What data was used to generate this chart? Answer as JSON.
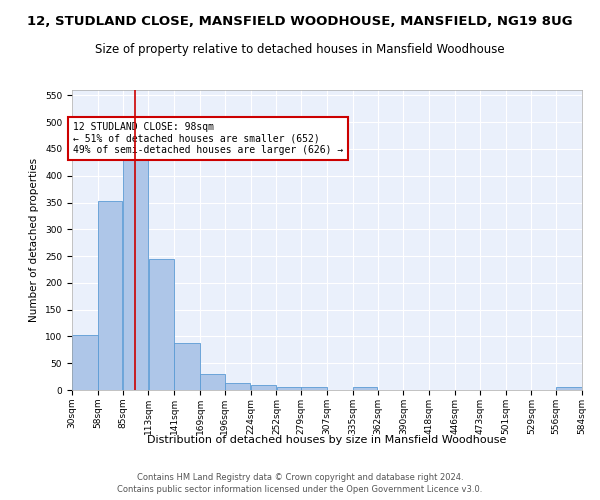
{
  "title": "12, STUDLAND CLOSE, MANSFIELD WOODHOUSE, MANSFIELD, NG19 8UG",
  "subtitle": "Size of property relative to detached houses in Mansfield Woodhouse",
  "xlabel": "Distribution of detached houses by size in Mansfield Woodhouse",
  "ylabel": "Number of detached properties",
  "footer_line1": "Contains HM Land Registry data © Crown copyright and database right 2024.",
  "footer_line2": "Contains public sector information licensed under the Open Government Licence v3.0.",
  "bar_edges": [
    30,
    58,
    85,
    113,
    141,
    169,
    196,
    224,
    252,
    279,
    307,
    335,
    362,
    390,
    418,
    446,
    473,
    501,
    529,
    556,
    584
  ],
  "bar_heights": [
    103,
    353,
    448,
    245,
    87,
    30,
    13,
    10,
    6,
    5,
    0,
    5,
    0,
    0,
    0,
    0,
    0,
    0,
    0,
    5
  ],
  "bar_color": "#aec6e8",
  "bar_edge_color": "#5b9bd5",
  "property_size": 98,
  "red_line_x": 98,
  "annotation_text": "12 STUDLAND CLOSE: 98sqm\n← 51% of detached houses are smaller (652)\n49% of semi-detached houses are larger (626) →",
  "annotation_box_color": "#ffffff",
  "annotation_box_edge_color": "#cc0000",
  "red_line_color": "#cc0000",
  "ylim": [
    0,
    560
  ],
  "yticks": [
    0,
    50,
    100,
    150,
    200,
    250,
    300,
    350,
    400,
    450,
    500,
    550
  ],
  "background_color": "#eaf0fb",
  "grid_color": "#ffffff",
  "fig_background_color": "#ffffff",
  "title_fontsize": 9.5,
  "subtitle_fontsize": 8.5,
  "xlabel_fontsize": 8,
  "ylabel_fontsize": 7.5,
  "tick_label_fontsize": 6.5,
  "annotation_fontsize": 7,
  "footer_fontsize": 6
}
